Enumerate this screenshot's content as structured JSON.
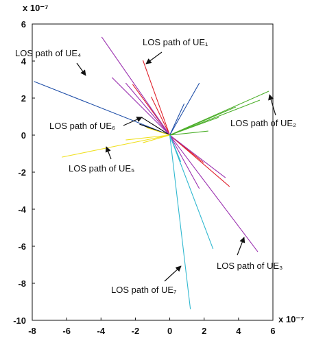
{
  "chart_data": {
    "type": "rays",
    "xlim": [
      -8,
      6
    ],
    "ylim": [
      -10,
      6
    ],
    "xticks": [
      -8,
      -6,
      -4,
      -2,
      0,
      2,
      4,
      6
    ],
    "yticks": [
      -10,
      -8,
      -6,
      -4,
      -2,
      0,
      2,
      4,
      6
    ],
    "x_exponent": "x 10⁻⁷",
    "y_exponent": "x 10⁻⁷",
    "series": [
      {
        "color": "#e0202a",
        "x": [
          -1.56,
          -2.16,
          -1.08,
          3.48,
          1.96
        ],
        "y": [
          4.04,
          2.74,
          2.07,
          -2.78,
          -1.48
        ]
      },
      {
        "color": "#9b30b0",
        "x": [
          -3.96,
          -3.36,
          -2.56,
          5.12,
          3.24,
          1.72
        ],
        "y": [
          5.3,
          3.11,
          2.81,
          -6.3,
          -2.3,
          -2.89
        ]
      },
      {
        "color": "#1f4fa8",
        "x": [
          -7.9,
          1.72,
          0.84
        ],
        "y": [
          2.9,
          2.81,
          1.7
        ]
      },
      {
        "color": "#000000",
        "x": [
          -1.64,
          -1.76
        ],
        "y": [
          0.96,
          0.59
        ]
      },
      {
        "color": "#4caf2a",
        "x": [
          5.76,
          5.24,
          3.84,
          2.84,
          2.24
        ],
        "y": [
          2.37,
          1.89,
          1.52,
          0.96,
          0.22
        ]
      },
      {
        "color": "#f0e020",
        "x": [
          -6.28,
          -1.56,
          -1.36,
          -2.56
        ],
        "y": [
          -1.19,
          -0.41,
          0.41,
          -0.26
        ]
      },
      {
        "color": "#30b8d0",
        "x": [
          1.2,
          2.52,
          0.64
        ],
        "y": [
          -9.4,
          -6.15,
          -1.44
        ]
      }
    ],
    "annotations": [
      "LOS path of UE₁",
      "LOS path of UE₄",
      "LOS path of UE₂",
      "LOS path of UE₆",
      "LOS path of UE₅",
      "LOS path of UE₃",
      "LOS path of UE₇"
    ]
  }
}
